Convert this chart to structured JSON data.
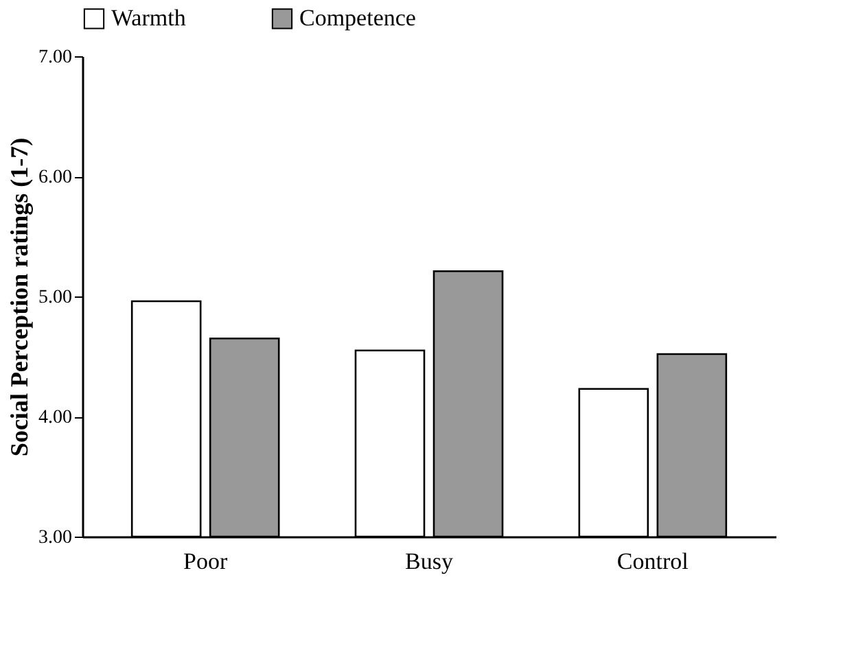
{
  "chart_data": {
    "type": "bar",
    "ylabel": "Social Perception ratings (1-7)",
    "categories": [
      "Poor",
      "Busy",
      "Control"
    ],
    "series": [
      {
        "name": "Warmth",
        "color": "#ffffff",
        "values": [
          4.96,
          4.55,
          4.23
        ]
      },
      {
        "name": "Competence",
        "color": "#999999",
        "values": [
          4.65,
          5.21,
          4.52
        ]
      }
    ],
    "ylim": [
      3,
      7
    ],
    "yticks": [
      {
        "value": 3,
        "label": "3.00"
      },
      {
        "value": 4,
        "label": "4.00"
      },
      {
        "value": 5,
        "label": "5.00"
      },
      {
        "value": 6,
        "label": "6.00"
      },
      {
        "value": 7,
        "label": "7.00"
      }
    ],
    "grid": false,
    "legend": "top"
  }
}
